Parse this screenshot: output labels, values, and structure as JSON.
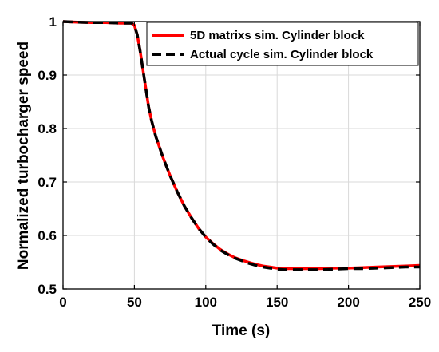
{
  "chart_data": {
    "type": "line",
    "xlabel": "Time (s)",
    "ylabel": "Normalized turbocharger speed",
    "xlim": [
      0,
      250
    ],
    "ylim": [
      0.5,
      1.0
    ],
    "xticks": [
      0,
      50,
      100,
      150,
      200,
      250
    ],
    "yticks": [
      0.5,
      0.6,
      0.7,
      0.8,
      0.9,
      1.0
    ],
    "xtick_labels": [
      "0",
      "50",
      "100",
      "150",
      "200",
      "250"
    ],
    "ytick_labels": [
      "0.5",
      "0.6",
      "0.7",
      "0.8",
      "0.9",
      "1"
    ],
    "grid": true,
    "legend_position": "top-right",
    "series": [
      {
        "name": "5D matrixs sim. Cylinder block",
        "color": "#ff0000",
        "dash": "solid",
        "x": [
          0,
          10,
          20,
          30,
          40,
          48,
          50,
          52,
          54,
          56,
          58,
          60,
          62,
          65,
          70,
          75,
          80,
          85,
          90,
          95,
          100,
          105,
          110,
          115,
          120,
          125,
          130,
          135,
          140,
          145,
          150,
          155,
          160,
          170,
          180,
          190,
          200,
          210,
          220,
          230,
          240,
          250
        ],
        "y": [
          1.0,
          0.999,
          0.998,
          0.998,
          0.997,
          0.997,
          0.993,
          0.975,
          0.945,
          0.91,
          0.875,
          0.84,
          0.815,
          0.785,
          0.746,
          0.712,
          0.682,
          0.655,
          0.633,
          0.613,
          0.597,
          0.585,
          0.574,
          0.566,
          0.559,
          0.554,
          0.55,
          0.546,
          0.543,
          0.541,
          0.539,
          0.538,
          0.538,
          0.538,
          0.538,
          0.539,
          0.539,
          0.54,
          0.541,
          0.542,
          0.543,
          0.544
        ]
      },
      {
        "name": "Actual cycle sim. Cylinder block",
        "color": "#000000",
        "dash": "dashed",
        "x": [
          0,
          10,
          20,
          30,
          40,
          48,
          50,
          52,
          54,
          56,
          58,
          60,
          62,
          65,
          70,
          75,
          80,
          85,
          90,
          95,
          100,
          105,
          110,
          115,
          120,
          125,
          130,
          135,
          140,
          145,
          150,
          155,
          160,
          170,
          180,
          190,
          200,
          210,
          220,
          230,
          240,
          250
        ],
        "y": [
          1.0,
          0.999,
          0.998,
          0.998,
          0.997,
          0.997,
          0.993,
          0.975,
          0.945,
          0.91,
          0.875,
          0.84,
          0.815,
          0.785,
          0.746,
          0.712,
          0.682,
          0.655,
          0.633,
          0.613,
          0.597,
          0.584,
          0.573,
          0.565,
          0.558,
          0.553,
          0.548,
          0.544,
          0.541,
          0.539,
          0.537,
          0.536,
          0.536,
          0.536,
          0.536,
          0.537,
          0.538,
          0.538,
          0.539,
          0.54,
          0.541,
          0.541
        ]
      }
    ]
  }
}
